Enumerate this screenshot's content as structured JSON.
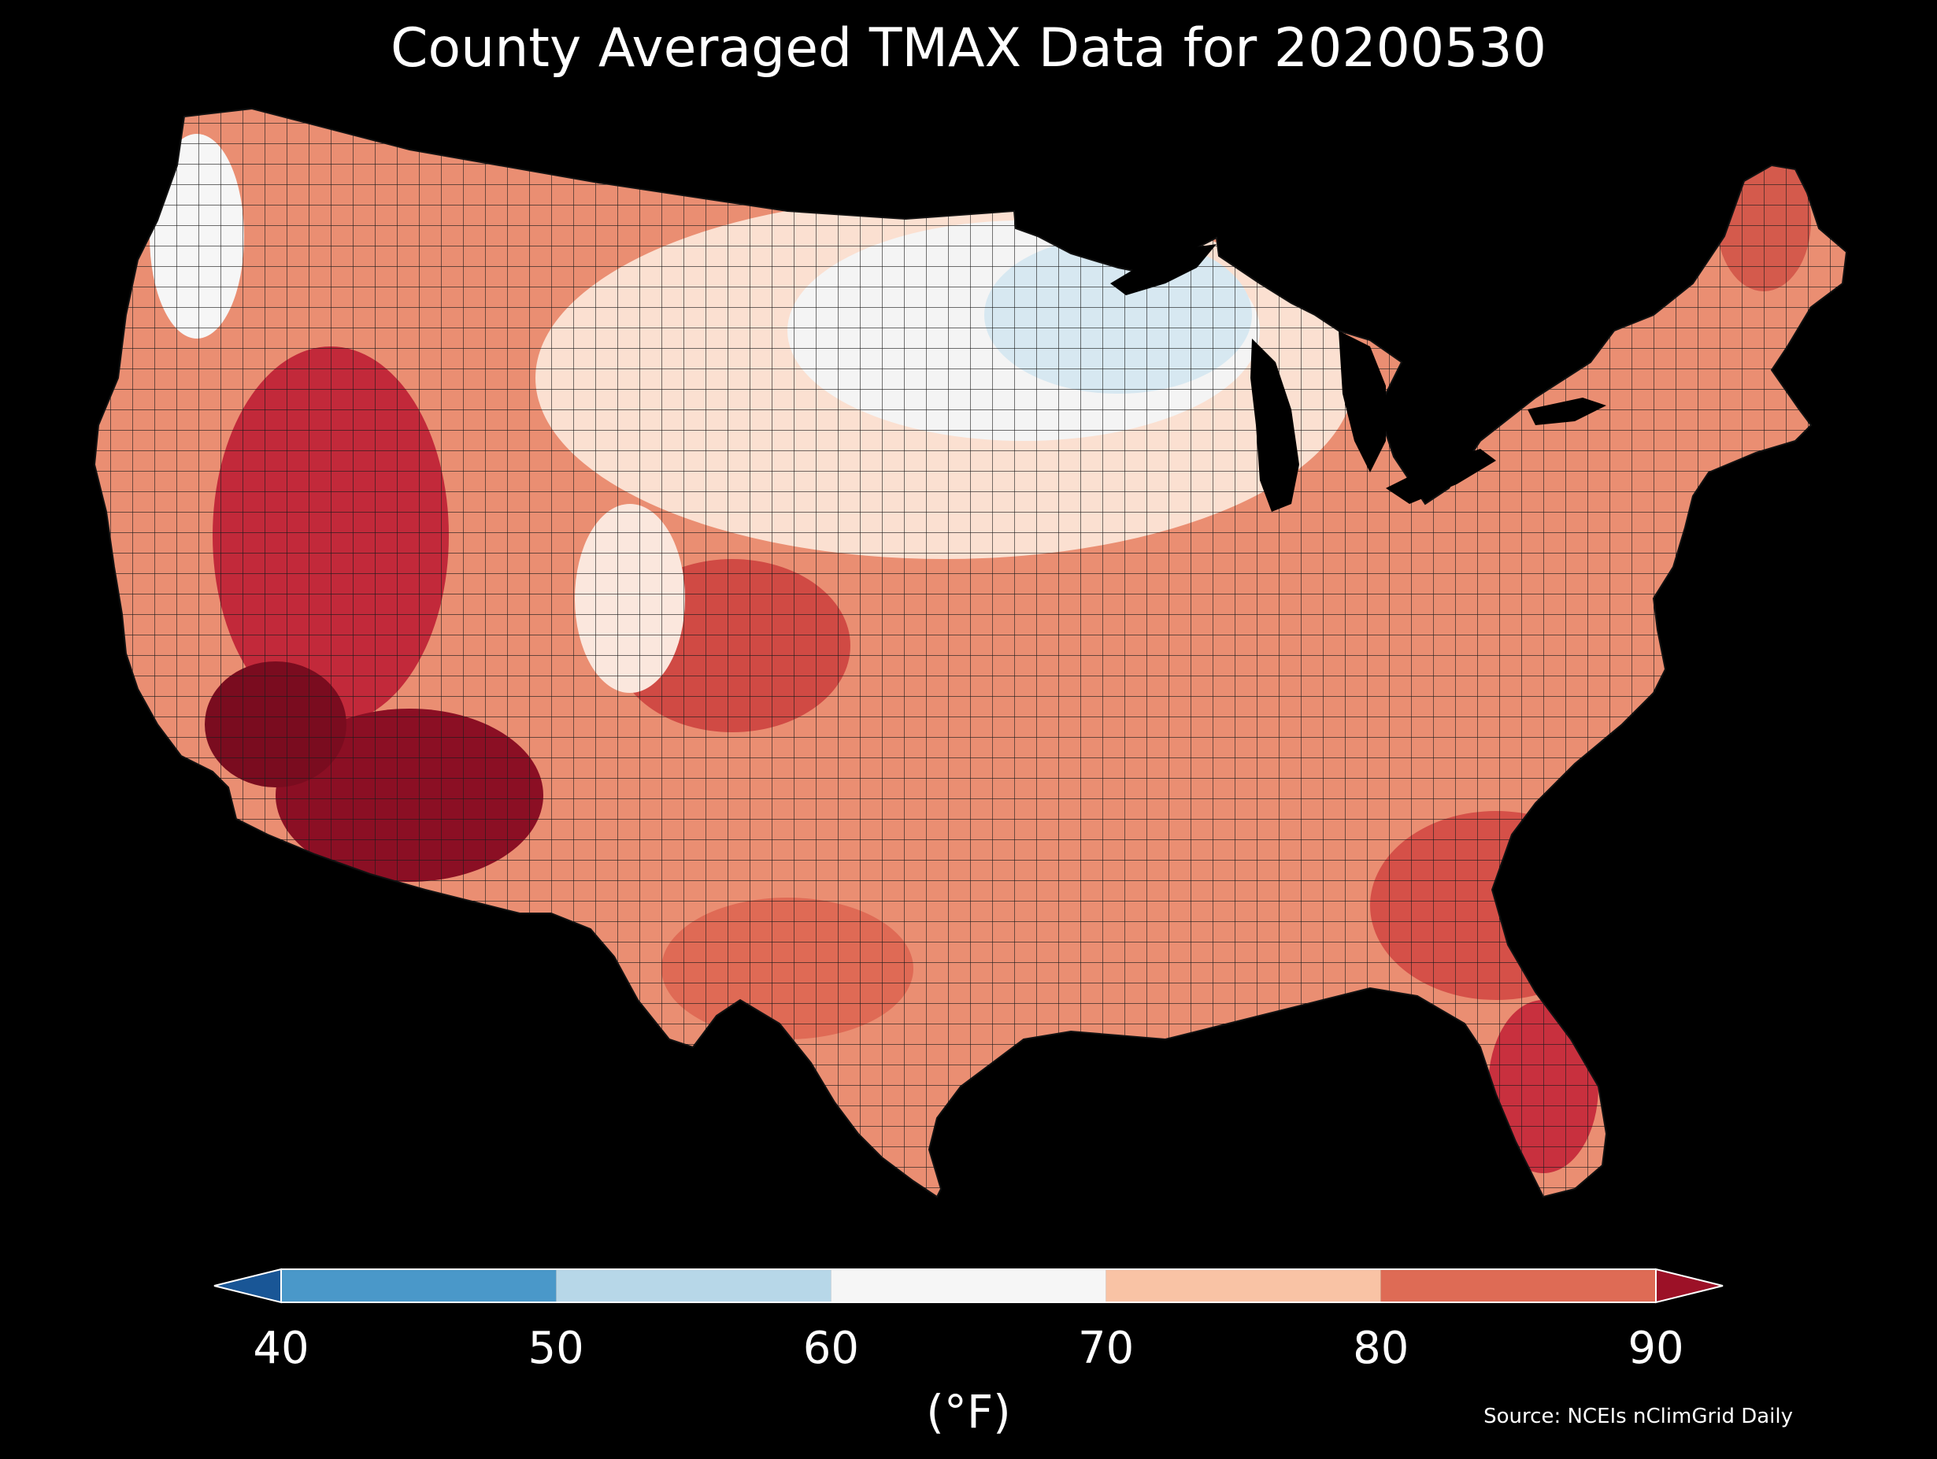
{
  "map": {
    "title": "County Averaged TMAX Data for 20200530",
    "region": "Contiguous United States",
    "variable": "TMAX",
    "date": "20200530",
    "source": "Source: NCEIs nClimGrid Daily"
  },
  "colorbar": {
    "label": "(°F)",
    "ticks": [
      "40",
      "50",
      "60",
      "70",
      "80",
      "90"
    ],
    "bins": [
      {
        "min": 40,
        "max": 50,
        "color": "#4a98c9"
      },
      {
        "min": 50,
        "max": 60,
        "color": "#b7d7e8"
      },
      {
        "min": 60,
        "max": 70,
        "color": "#f6f6f6"
      },
      {
        "min": 70,
        "max": 80,
        "color": "#f9c3a5"
      },
      {
        "min": 80,
        "max": 90,
        "color": "#de6b55"
      }
    ],
    "under_color": "#195696",
    "over_color": "#9c1127",
    "extend": "both"
  },
  "colors": {
    "background": "#000000",
    "county_border": "#1a1a1a",
    "water": "#000000"
  }
}
